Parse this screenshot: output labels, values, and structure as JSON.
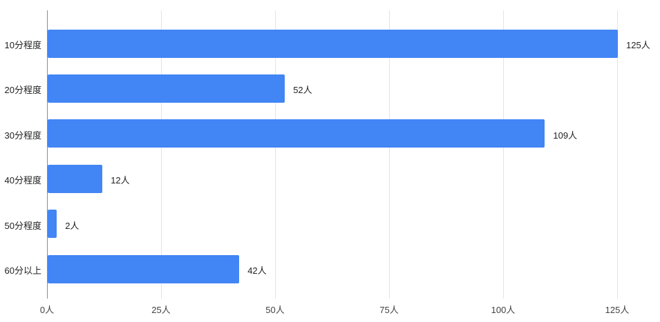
{
  "chart": {
    "background_color": "#ffffff",
    "bar_color": "#4285f4",
    "gridline_color": "#e3e3e3",
    "axis_line_color": "#8a8a8a",
    "label_color": "#212121",
    "tick_label_color": "#424242",
    "value_suffix": "人"
  },
  "chart_data": {
    "type": "bar",
    "orientation": "horizontal",
    "title": "",
    "xlabel": "",
    "ylabel": "",
    "categories": [
      "10分程度",
      "20分程度",
      "30分程度",
      "40分程度",
      "50分程度",
      "60分以上"
    ],
    "values": [
      125,
      52,
      109,
      12,
      2,
      42
    ],
    "value_labels": [
      "125人",
      "52人",
      "109人",
      "12人",
      "2人",
      "42人"
    ],
    "x_ticks": [
      0,
      25,
      50,
      75,
      100,
      125
    ],
    "x_tick_labels": [
      "0人",
      "25人",
      "50人",
      "75人",
      "100人",
      "125人"
    ],
    "xlim": [
      0,
      125
    ],
    "grid": true,
    "legend": false
  }
}
